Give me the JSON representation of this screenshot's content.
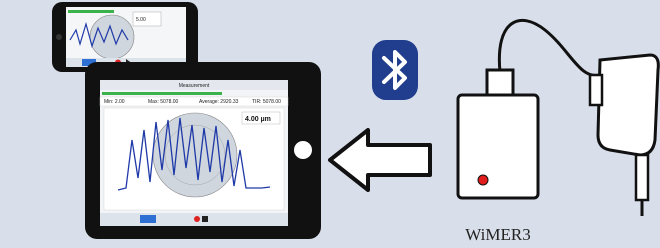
{
  "phone": {
    "reading": "5.00"
  },
  "tablet": {
    "title": "Measurement",
    "stats": [
      "Min: 2.00",
      "Max: 5078.00",
      "Average: 2920.33",
      "TIR: 5078.00"
    ],
    "reading": "4.00 µm"
  },
  "device": {
    "label": "WiMER3"
  }
}
